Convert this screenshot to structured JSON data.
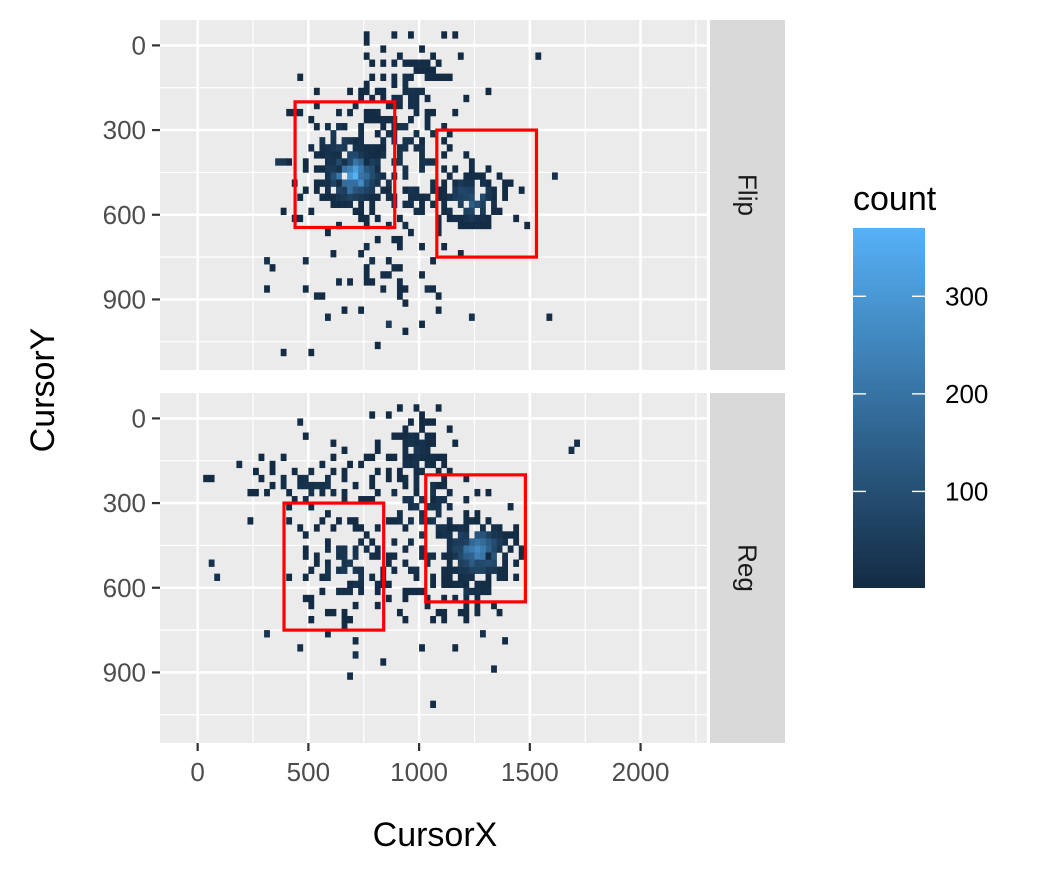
{
  "chart_data": {
    "type": "heatmap",
    "xlabel": "CursorX",
    "ylabel": "CursorY",
    "xlim": [
      -170,
      2300
    ],
    "ylim": [
      1150,
      -90
    ],
    "x_ticks": [
      0,
      500,
      1000,
      1500,
      2000
    ],
    "y_ticks": [
      0,
      300,
      600,
      900
    ],
    "y_reversed": true,
    "bin_size": 25,
    "grid": true,
    "legend": {
      "title": "count",
      "placement": "right",
      "ticks": [
        100,
        200,
        300
      ],
      "range": [
        1,
        370
      ],
      "low_color": "#132b43",
      "high_color": "#56b1f7"
    },
    "highlight_color": "#ff0000",
    "panels": [
      {
        "label": "Flip",
        "boxes": [
          {
            "x": [
              440,
              890
            ],
            "y": [
              200,
              645
            ]
          },
          {
            "x": [
              1080,
              1530
            ],
            "y": [
              300,
              750
            ]
          }
        ],
        "clusters": [
          {
            "x": 700,
            "y": 460,
            "sx": 80,
            "sy": 55,
            "n": 160,
            "peak": 370
          },
          {
            "x": 1230,
            "y": 550,
            "sx": 75,
            "sy": 55,
            "n": 110,
            "peak": 140
          },
          {
            "x": 640,
            "y": 350,
            "sx": 110,
            "sy": 110,
            "n": 90,
            "peak": 45
          },
          {
            "x": 920,
            "y": 420,
            "sx": 180,
            "sy": 230,
            "n": 140,
            "peak": 30
          },
          {
            "x": 960,
            "y": 170,
            "sx": 120,
            "sy": 130,
            "n": 55,
            "peak": 25
          },
          {
            "x": 780,
            "y": 760,
            "sx": 220,
            "sy": 150,
            "n": 50,
            "peak": 20
          }
        ],
        "points": [
          {
            "x": 360,
            "y": 420,
            "c": 40
          },
          {
            "x": 385,
            "y": 420,
            "c": 30
          },
          {
            "x": 870,
            "y": 990,
            "c": 45
          },
          {
            "x": 310,
            "y": 760,
            "c": 20
          },
          {
            "x": 580,
            "y": 960,
            "c": 15
          },
          {
            "x": 1610,
            "y": 470,
            "c": 15
          },
          {
            "x": 1580,
            "y": 960,
            "c": 10
          },
          {
            "x": 1230,
            "y": 960,
            "c": 20
          },
          {
            "x": 1030,
            "y": 870,
            "c": 20
          },
          {
            "x": 540,
            "y": 880,
            "c": 15
          },
          {
            "x": 490,
            "y": 760,
            "c": 15
          }
        ]
      },
      {
        "label": "Reg",
        "boxes": [
          {
            "x": 390,
            "y": 300
          },
          {
            "x": 1030,
            "y": 200
          }
        ],
        "box_extents": [
          {
            "x": [
              390,
              840
            ],
            "y": [
              300,
              750
            ]
          },
          {
            "x": [
              1030,
              1480
            ],
            "y": [
              200,
              650
            ]
          }
        ],
        "clusters": [
          {
            "x": 1260,
            "y": 470,
            "sx": 85,
            "sy": 60,
            "n": 170,
            "peak": 260
          },
          {
            "x": 680,
            "y": 520,
            "sx": 130,
            "sy": 110,
            "n": 90,
            "peak": 40
          },
          {
            "x": 1020,
            "y": 350,
            "sx": 150,
            "sy": 200,
            "n": 130,
            "peak": 35
          },
          {
            "x": 980,
            "y": 120,
            "sx": 60,
            "sy": 80,
            "n": 45,
            "peak": 35
          },
          {
            "x": 530,
            "y": 230,
            "sx": 180,
            "sy": 60,
            "n": 60,
            "peak": 25
          },
          {
            "x": 1210,
            "y": 620,
            "sx": 90,
            "sy": 40,
            "n": 40,
            "peak": 30
          }
        ],
        "points": [
          {
            "x": 70,
            "y": 520,
            "c": 20
          },
          {
            "x": 90,
            "y": 560,
            "c": 20
          },
          {
            "x": 190,
            "y": 170,
            "c": 15
          },
          {
            "x": 1720,
            "y": 90,
            "c": 15
          },
          {
            "x": 1690,
            "y": 100,
            "c": 15
          },
          {
            "x": 720,
            "y": 830,
            "c": 20
          },
          {
            "x": 470,
            "y": 820,
            "c": 15
          },
          {
            "x": 1280,
            "y": 760,
            "c": 20
          },
          {
            "x": 1330,
            "y": 880,
            "c": 15
          },
          {
            "x": 690,
            "y": 910,
            "c": 10
          },
          {
            "x": 840,
            "y": 870,
            "c": 10
          },
          {
            "x": 1050,
            "y": 1000,
            "c": 10
          },
          {
            "x": 300,
            "y": 770,
            "c": 20
          },
          {
            "x": 450,
            "y": 20,
            "c": 10
          }
        ]
      }
    ]
  }
}
